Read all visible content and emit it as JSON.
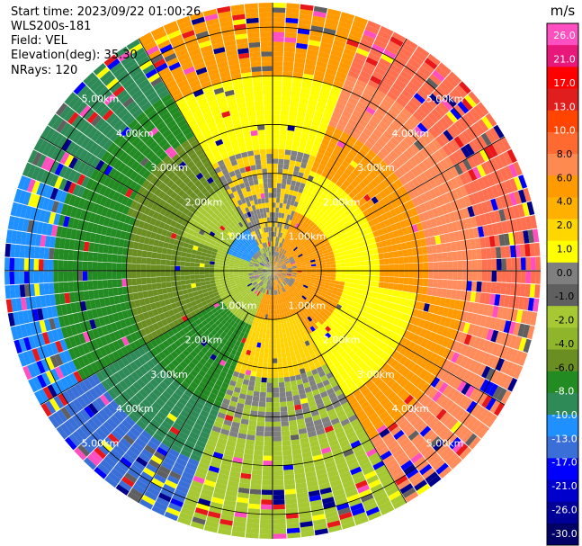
{
  "header": {
    "start_time": "Start time: 2023/09/22 01:00:26",
    "site": "WLS200s-181",
    "field": "Field: VEL",
    "elevation": "Elevation(deg): 35.30",
    "nrays": "NRays: 120"
  },
  "chart_data": {
    "type": "heatmap",
    "projection": "polar-ppi",
    "field": "VEL",
    "units": "m/s",
    "nrays": 120,
    "max_range_km": 5.5,
    "range_rings_km": [
      1,
      2,
      3,
      4,
      5
    ],
    "ring_labels": [
      "1.00km",
      "2.00km",
      "3.00km",
      "4.00km",
      "5.00km"
    ],
    "spokes": 12,
    "colorbar": {
      "unit_label": "m/s",
      "ticks": [
        "26.0",
        "21.0",
        "17.0",
        "13.0",
        "10.0",
        "8.0",
        "6.0",
        "4.0",
        "2.0",
        "1.0",
        "0.0",
        "-1.0",
        "-2.0",
        "-4.0",
        "-6.0",
        "-8.0",
        "-10.0",
        "-13.0",
        "-17.0",
        "-21.0",
        "-26.0",
        "-30.0"
      ],
      "colors": [
        "#ff4fc0",
        "#e8177a",
        "#ff0000",
        "#e01e1e",
        "#ff4500",
        "#ff6a30",
        "#ff8a50",
        "#ff9a00",
        "#ffb000",
        "#ffd700",
        "#ffff00",
        "#7f7f7f",
        "#5f5f5f",
        "#a6c832",
        "#8fb52b",
        "#6b8e23",
        "#228b22",
        "#2e8b57",
        "#1e90ff",
        "#3a6fd8",
        "#0000ff",
        "#0000cc",
        "#000099",
        "#000066"
      ]
    }
  }
}
